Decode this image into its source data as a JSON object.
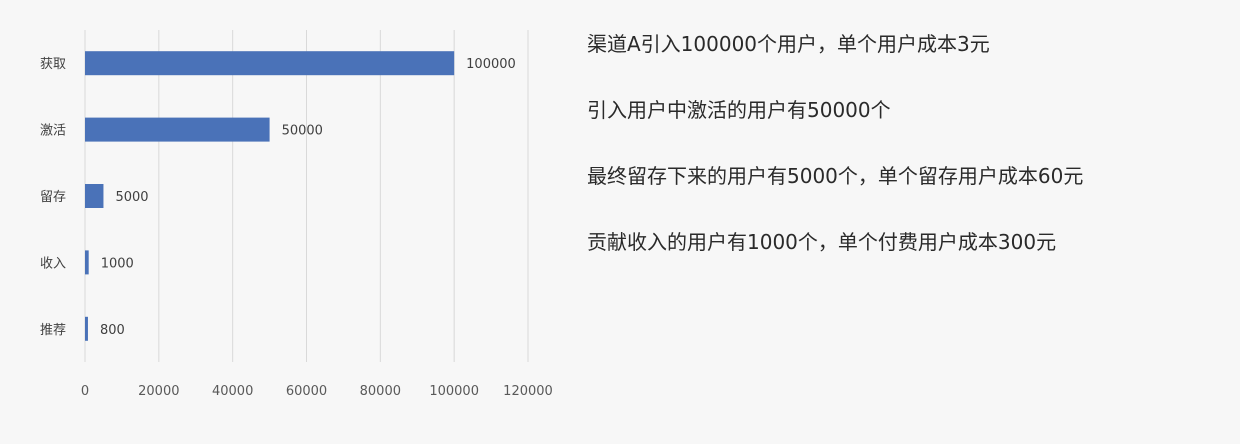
{
  "chart_data": {
    "type": "bar",
    "orientation": "horizontal",
    "categories": [
      "获取",
      "激活",
      "留存",
      "收入",
      "推荐"
    ],
    "values": [
      100000,
      50000,
      5000,
      1000,
      800
    ],
    "data_labels": [
      "100000",
      "50000",
      "5000",
      "1000",
      "800"
    ],
    "xlim": [
      0,
      120000
    ],
    "x_ticks": [
      0,
      20000,
      40000,
      60000,
      80000,
      100000,
      120000
    ],
    "x_tick_labels": [
      "0",
      "20000",
      "40000",
      "60000",
      "80000",
      "100000",
      "120000"
    ],
    "grid": true,
    "bar_color": "#4a72b8",
    "grid_color": "#d9d9d9"
  },
  "notes": [
    "渠道A引入100000个用户，单个用户成本3元",
    "引入用户中激活的用户有50000个",
    "最终留存下来的用户有5000个，单个留存用户成本60元",
    "贡献收入的用户有1000个，单个付费用户成本300元"
  ]
}
